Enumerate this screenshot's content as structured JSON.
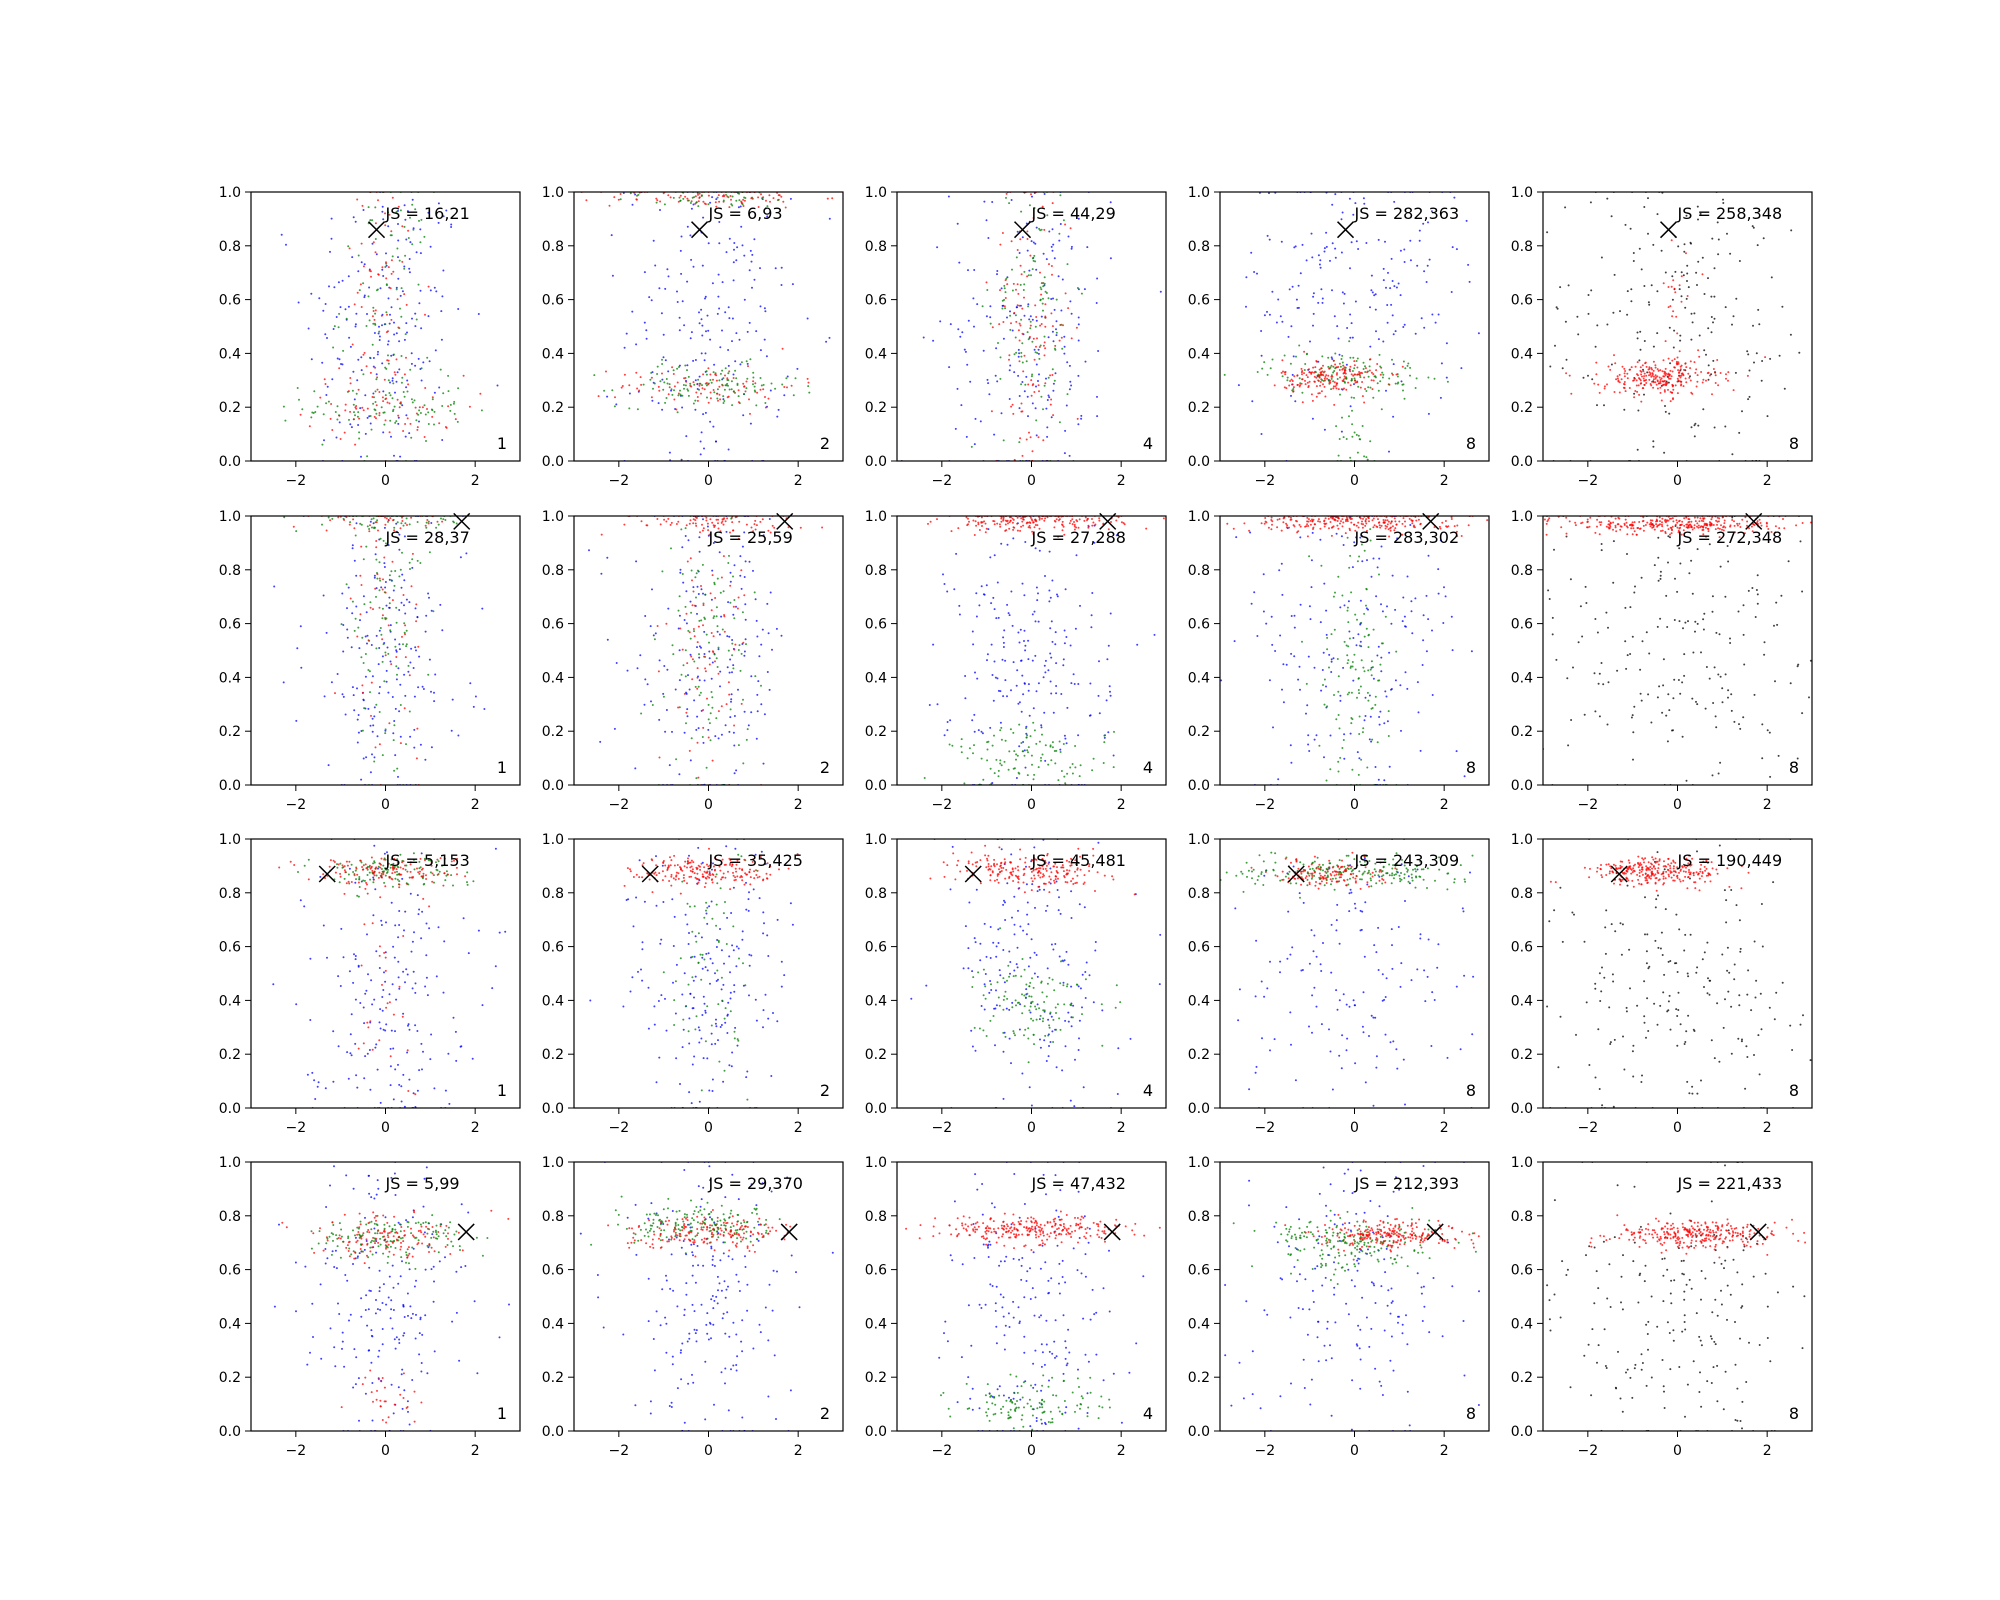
{
  "colors": {
    "blue": "#0000ff",
    "green": "#008000",
    "red": "#ff0000",
    "black": "#000000"
  },
  "chart_data": {
    "type": "scatter",
    "layout": "grid 4 rows x 5 columns",
    "xlim": [
      -3,
      3
    ],
    "ylim": [
      0,
      1
    ],
    "x_ticks": [
      "−2",
      "0",
      "2"
    ],
    "y_ticks": [
      "0.0",
      "0.2",
      "0.4",
      "0.6",
      "0.8",
      "1.0"
    ],
    "grid": false,
    "legend": "none",
    "rows": [
      {
        "marker": {
          "x": -0.2,
          "y": 0.86
        },
        "panels": [
          {
            "js": "JS = 16,21",
            "corner": "1",
            "clusters": [
              {
                "color": "blue",
                "x": 0,
                "y": 0.5,
                "sx": 0.9,
                "sy": 0.3,
                "n": 200
              },
              {
                "color": "green",
                "x": 0,
                "y": 0.2,
                "sx": 0.9,
                "sy": 0.06,
                "n": 90
              },
              {
                "color": "red",
                "x": 0,
                "y": 0.2,
                "sx": 0.9,
                "sy": 0.06,
                "n": 70
              },
              {
                "color": "green",
                "x": 0,
                "y": 0.6,
                "sx": 0.5,
                "sy": 0.25,
                "n": 90
              },
              {
                "color": "red",
                "x": 0,
                "y": 0.6,
                "sx": 0.5,
                "sy": 0.25,
                "n": 70
              }
            ]
          },
          {
            "js": "JS = 6,93",
            "corner": "2",
            "clusters": [
              {
                "color": "blue",
                "x": 0,
                "y": 0.5,
                "sx": 0.9,
                "sy": 0.3,
                "n": 200
              },
              {
                "color": "green",
                "x": 0,
                "y": 0.28,
                "sx": 1.0,
                "sy": 0.04,
                "n": 120
              },
              {
                "color": "red",
                "x": 0,
                "y": 0.28,
                "sx": 1.0,
                "sy": 0.04,
                "n": 90
              },
              {
                "color": "red",
                "x": 0,
                "y": 0.98,
                "sx": 1.2,
                "sy": 0.02,
                "n": 90
              },
              {
                "color": "green",
                "x": 0,
                "y": 0.98,
                "sx": 1.2,
                "sy": 0.02,
                "n": 50
              }
            ]
          },
          {
            "js": "JS = 44,29",
            "corner": "4",
            "clusters": [
              {
                "color": "blue",
                "x": 0,
                "y": 0.5,
                "sx": 0.9,
                "sy": 0.3,
                "n": 200
              },
              {
                "color": "red",
                "x": 0,
                "y": 0.5,
                "sx": 0.45,
                "sy": 0.27,
                "n": 130
              },
              {
                "color": "green",
                "x": 0,
                "y": 0.55,
                "sx": 0.45,
                "sy": 0.27,
                "n": 110
              }
            ]
          },
          {
            "js": "JS = 282,363",
            "corner": "8",
            "clusters": [
              {
                "color": "blue",
                "x": 0,
                "y": 0.65,
                "sx": 1.3,
                "sy": 0.25,
                "n": 200
              },
              {
                "color": "green",
                "x": -0.2,
                "y": 0.33,
                "sx": 0.9,
                "sy": 0.04,
                "n": 130
              },
              {
                "color": "red",
                "x": -0.5,
                "y": 0.31,
                "sx": 0.55,
                "sy": 0.035,
                "n": 180
              },
              {
                "color": "green",
                "x": 0,
                "y": 0.1,
                "sx": 0.25,
                "sy": 0.08,
                "n": 30
              }
            ]
          },
          {
            "js": "JS = 258,348",
            "corner": "8",
            "clusters": [
              {
                "color": "black",
                "x": 0,
                "y": 0.5,
                "sx": 1.6,
                "sy": 0.3,
                "n": 220
              },
              {
                "color": "red",
                "x": -0.4,
                "y": 0.31,
                "sx": 0.65,
                "sy": 0.035,
                "n": 260
              },
              {
                "color": "red",
                "x": 0,
                "y": 0.62,
                "sx": 0.25,
                "sy": 0.1,
                "n": 20
              }
            ]
          }
        ]
      },
      {
        "marker": {
          "x": 1.7,
          "y": 0.98
        },
        "panels": [
          {
            "js": "JS = 28,37",
            "corner": "1",
            "clusters": [
              {
                "color": "blue",
                "x": 0,
                "y": 0.5,
                "sx": 0.9,
                "sy": 0.3,
                "n": 200
              },
              {
                "color": "green",
                "x": 0,
                "y": 0.6,
                "sx": 0.45,
                "sy": 0.25,
                "n": 100
              },
              {
                "color": "red",
                "x": 0,
                "y": 0.6,
                "sx": 0.45,
                "sy": 0.25,
                "n": 60
              },
              {
                "color": "green",
                "x": 0,
                "y": 0.98,
                "sx": 1.0,
                "sy": 0.02,
                "n": 50
              },
              {
                "color": "red",
                "x": 0,
                "y": 0.98,
                "sx": 1.0,
                "sy": 0.02,
                "n": 40
              }
            ]
          },
          {
            "js": "JS = 25,59",
            "corner": "2",
            "clusters": [
              {
                "color": "blue",
                "x": 0,
                "y": 0.5,
                "sx": 0.9,
                "sy": 0.3,
                "n": 200
              },
              {
                "color": "green",
                "x": 0,
                "y": 0.5,
                "sx": 0.45,
                "sy": 0.25,
                "n": 110
              },
              {
                "color": "red",
                "x": 0,
                "y": 0.5,
                "sx": 0.45,
                "sy": 0.25,
                "n": 80
              },
              {
                "color": "red",
                "x": 0,
                "y": 0.98,
                "sx": 1.0,
                "sy": 0.02,
                "n": 90
              }
            ]
          },
          {
            "js": "JS = 27,288",
            "corner": "4",
            "clusters": [
              {
                "color": "blue",
                "x": 0,
                "y": 0.45,
                "sx": 0.9,
                "sy": 0.3,
                "n": 220
              },
              {
                "color": "green",
                "x": 0,
                "y": 0.1,
                "sx": 0.9,
                "sy": 0.06,
                "n": 110
              },
              {
                "color": "red",
                "x": 0,
                "y": 0.98,
                "sx": 1.0,
                "sy": 0.02,
                "n": 200
              }
            ]
          },
          {
            "js": "JS = 283,302",
            "corner": "8",
            "clusters": [
              {
                "color": "blue",
                "x": 0,
                "y": 0.5,
                "sx": 1.3,
                "sy": 0.3,
                "n": 200
              },
              {
                "color": "green",
                "x": 0,
                "y": 0.45,
                "sx": 0.4,
                "sy": 0.25,
                "n": 130
              },
              {
                "color": "red",
                "x": 0,
                "y": 0.98,
                "sx": 1.2,
                "sy": 0.02,
                "n": 260
              }
            ]
          },
          {
            "js": "JS = 272,348",
            "corner": "8",
            "clusters": [
              {
                "color": "black",
                "x": 0,
                "y": 0.5,
                "sx": 1.6,
                "sy": 0.3,
                "n": 220
              },
              {
                "color": "red",
                "x": 0,
                "y": 0.97,
                "sx": 1.2,
                "sy": 0.02,
                "n": 320
              }
            ]
          }
        ]
      },
      {
        "marker": {
          "x": -1.3,
          "y": 0.87
        },
        "panels": [
          {
            "js": "JS = 5,153",
            "corner": "1",
            "clusters": [
              {
                "color": "blue",
                "x": 0,
                "y": 0.45,
                "sx": 0.9,
                "sy": 0.28,
                "n": 200
              },
              {
                "color": "green",
                "x": 0,
                "y": 0.88,
                "sx": 0.85,
                "sy": 0.03,
                "n": 130
              },
              {
                "color": "red",
                "x": 0,
                "y": 0.88,
                "sx": 0.85,
                "sy": 0.03,
                "n": 130
              },
              {
                "color": "red",
                "x": 0,
                "y": 0.4,
                "sx": 0.45,
                "sy": 0.2,
                "n": 30
              }
            ]
          },
          {
            "js": "JS = 35,425",
            "corner": "2",
            "clusters": [
              {
                "color": "blue",
                "x": 0,
                "y": 0.45,
                "sx": 0.9,
                "sy": 0.28,
                "n": 200
              },
              {
                "color": "green",
                "x": 0,
                "y": 0.5,
                "sx": 0.45,
                "sy": 0.25,
                "n": 70
              },
              {
                "color": "red",
                "x": 0,
                "y": 0.88,
                "sx": 0.85,
                "sy": 0.03,
                "n": 200
              }
            ]
          },
          {
            "js": "JS = 45,481",
            "corner": "4",
            "clusters": [
              {
                "color": "blue",
                "x": 0,
                "y": 0.5,
                "sx": 0.9,
                "sy": 0.28,
                "n": 200
              },
              {
                "color": "green",
                "x": 0,
                "y": 0.4,
                "sx": 0.6,
                "sy": 0.08,
                "n": 120
              },
              {
                "color": "red",
                "x": 0,
                "y": 0.88,
                "sx": 0.85,
                "sy": 0.03,
                "n": 220
              }
            ]
          },
          {
            "js": "JS = 243,309",
            "corner": "8",
            "clusters": [
              {
                "color": "blue",
                "x": 0,
                "y": 0.5,
                "sx": 1.3,
                "sy": 0.28,
                "n": 160
              },
              {
                "color": "green",
                "x": 0,
                "y": 0.88,
                "sx": 1.3,
                "sy": 0.03,
                "n": 220
              },
              {
                "color": "red",
                "x": -0.6,
                "y": 0.87,
                "sx": 0.6,
                "sy": 0.025,
                "n": 130
              }
            ]
          },
          {
            "js": "JS = 190,449",
            "corner": "8",
            "clusters": [
              {
                "color": "black",
                "x": 0,
                "y": 0.45,
                "sx": 1.6,
                "sy": 0.28,
                "n": 220
              },
              {
                "color": "red",
                "x": -0.4,
                "y": 0.88,
                "sx": 0.75,
                "sy": 0.025,
                "n": 280
              }
            ]
          }
        ]
      },
      {
        "marker": {
          "x": 1.8,
          "y": 0.74
        },
        "panels": [
          {
            "js": "JS = 5,99",
            "corner": "1",
            "clusters": [
              {
                "color": "blue",
                "x": 0,
                "y": 0.45,
                "sx": 0.9,
                "sy": 0.28,
                "n": 200
              },
              {
                "color": "green",
                "x": 0,
                "y": 0.72,
                "sx": 0.85,
                "sy": 0.04,
                "n": 150
              },
              {
                "color": "red",
                "x": 0,
                "y": 0.72,
                "sx": 0.85,
                "sy": 0.04,
                "n": 130
              },
              {
                "color": "red",
                "x": 0,
                "y": 0.1,
                "sx": 0.45,
                "sy": 0.06,
                "n": 30
              }
            ]
          },
          {
            "js": "JS = 29,370",
            "corner": "2",
            "clusters": [
              {
                "color": "blue",
                "x": 0,
                "y": 0.45,
                "sx": 0.9,
                "sy": 0.28,
                "n": 200
              },
              {
                "color": "green",
                "x": 0,
                "y": 0.76,
                "sx": 0.9,
                "sy": 0.035,
                "n": 170
              },
              {
                "color": "red",
                "x": 0,
                "y": 0.74,
                "sx": 0.9,
                "sy": 0.03,
                "n": 170
              }
            ]
          },
          {
            "js": "JS = 47,432",
            "corner": "4",
            "clusters": [
              {
                "color": "blue",
                "x": 0,
                "y": 0.45,
                "sx": 0.9,
                "sy": 0.28,
                "n": 200
              },
              {
                "color": "green",
                "x": 0,
                "y": 0.1,
                "sx": 0.9,
                "sy": 0.05,
                "n": 120
              },
              {
                "color": "red",
                "x": 0,
                "y": 0.75,
                "sx": 1.0,
                "sy": 0.025,
                "n": 260
              }
            ]
          },
          {
            "js": "JS = 212,393",
            "corner": "8",
            "clusters": [
              {
                "color": "blue",
                "x": 0,
                "y": 0.5,
                "sx": 1.3,
                "sy": 0.28,
                "n": 180
              },
              {
                "color": "green",
                "x": 0,
                "y": 0.7,
                "sx": 0.9,
                "sy": 0.05,
                "n": 200
              },
              {
                "color": "red",
                "x": 0.8,
                "y": 0.73,
                "sx": 0.75,
                "sy": 0.025,
                "n": 220
              }
            ]
          },
          {
            "js": "JS = 221,433",
            "corner": "8",
            "clusters": [
              {
                "color": "black",
                "x": 0,
                "y": 0.45,
                "sx": 1.6,
                "sy": 0.28,
                "n": 220
              },
              {
                "color": "red",
                "x": 0.5,
                "y": 0.73,
                "sx": 0.95,
                "sy": 0.025,
                "n": 300
              }
            ]
          }
        ]
      }
    ]
  }
}
